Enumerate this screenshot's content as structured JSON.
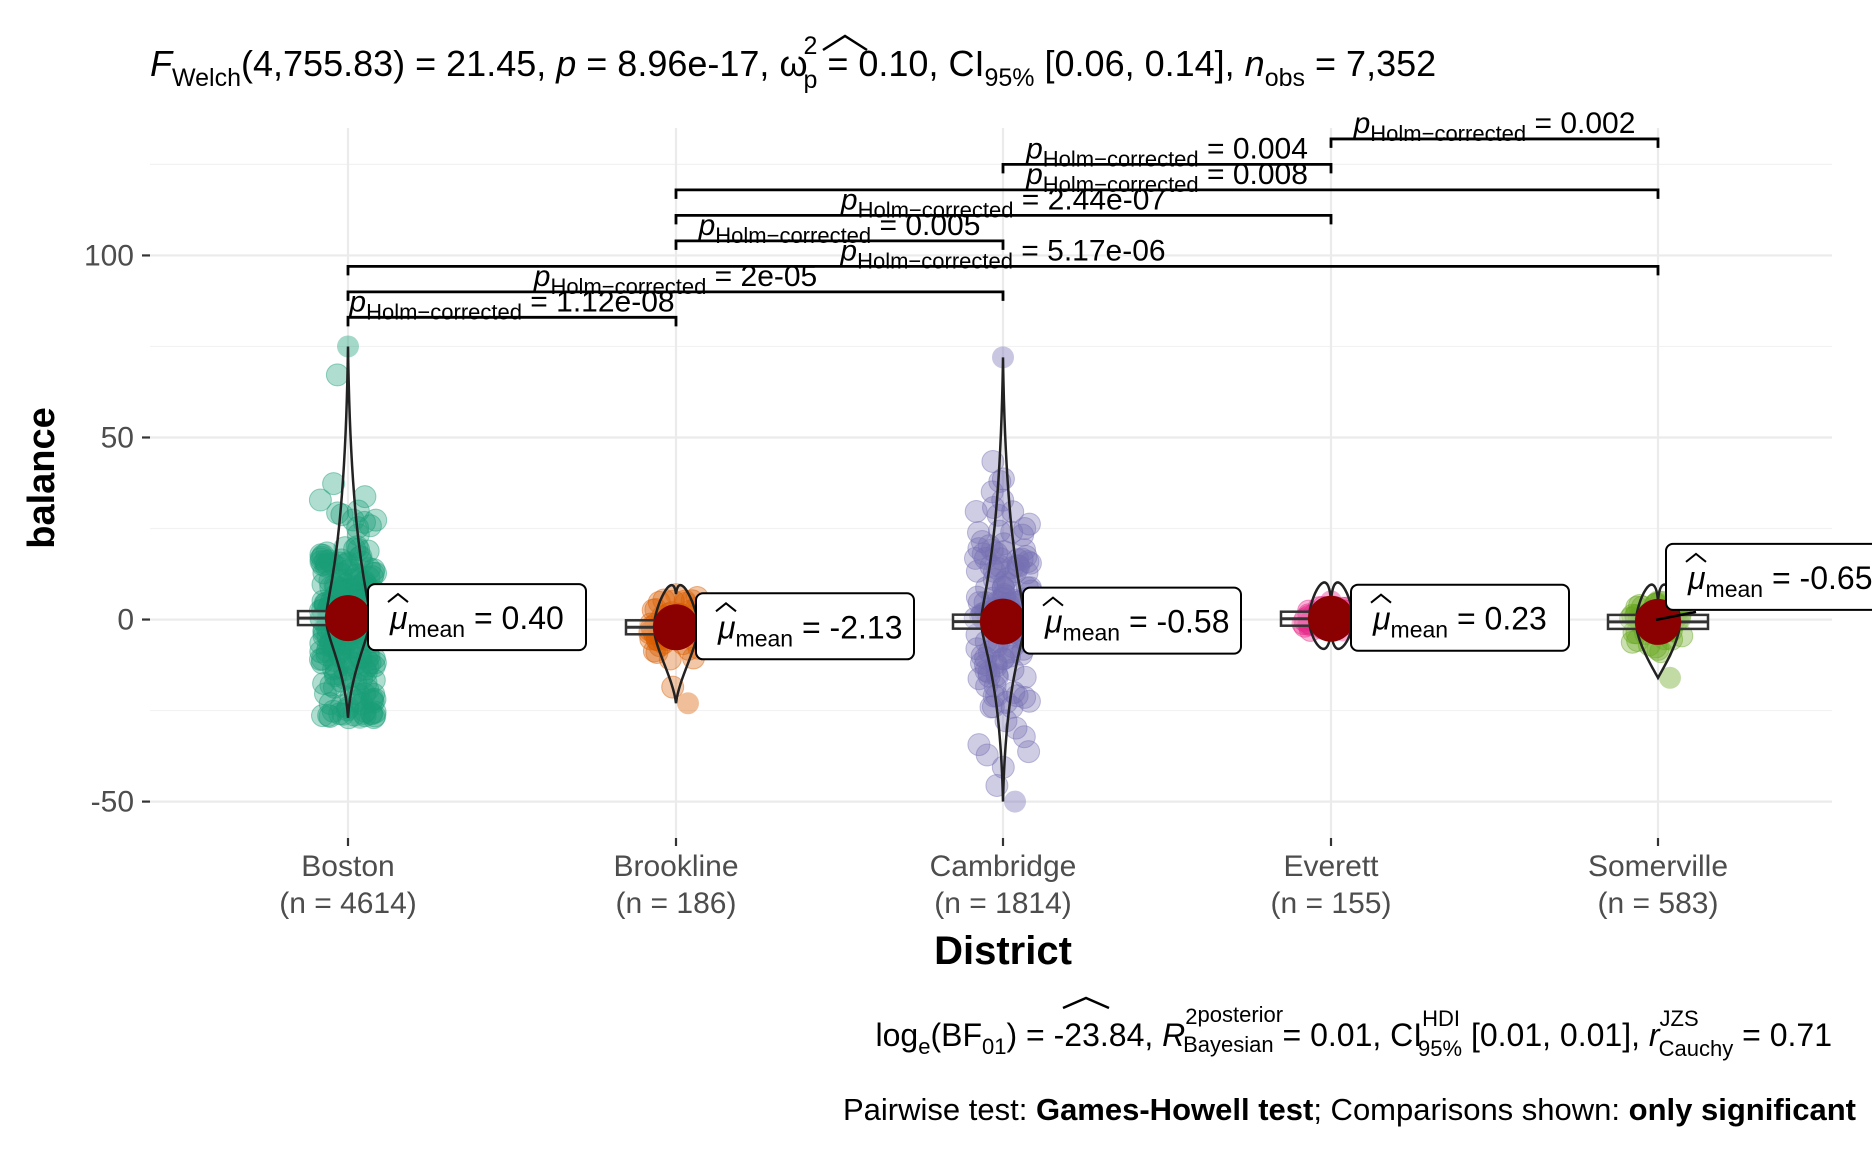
{
  "chart_data": {
    "type": "violin-box-scatter",
    "title": {
      "F": "F",
      "F_sub": "Welch",
      "F_args": "(4,755.83) = 21.45, ",
      "p": "p",
      "p_val": " = 8.96e-17, ",
      "omega": "ω",
      "omega_sup": "2",
      "omega_sub": "p",
      "omega_val": " = 0.10, CI",
      "ci_sub": "95%",
      "ci_val": " [0.06, 0.14], ",
      "n": "n",
      "n_sub": "obs",
      "n_val": " = 7,352"
    },
    "xlabel": "District",
    "ylabel": "balance",
    "ylim": [
      -60,
      135
    ],
    "y_ticks": [
      -50,
      0,
      50,
      100
    ],
    "groups": [
      {
        "name": "Boston",
        "n_label": "(n = 4614)",
        "mean": 0.4,
        "mean_label": "= 0.40",
        "color": "#1b9e77",
        "min": -27,
        "max": 75,
        "spread": 18
      },
      {
        "name": "Brookline",
        "n_label": "(n = 186)",
        "mean": -2.13,
        "mean_label": "= -2.13",
        "color": "#d95f02",
        "min": -23,
        "max": 7,
        "spread": 6
      },
      {
        "name": "Cambridge",
        "n_label": "(n = 1814)",
        "mean": -0.58,
        "mean_label": "= -0.58",
        "color": "#7570b3",
        "min": -50,
        "max": 72,
        "spread": 22
      },
      {
        "name": "Everett",
        "n_label": "(n = 155)",
        "mean": 0.23,
        "mean_label": "= 0.23",
        "color": "#e7298a",
        "min": -3,
        "max": 5,
        "spread": 2
      },
      {
        "name": "Somerville",
        "n_label": "(n = 583)",
        "mean": -0.65,
        "mean_label": "= -0.65",
        "color": "#66a61e",
        "min": -16,
        "max": 5,
        "spread": 5
      }
    ],
    "mu": "μ",
    "mean_sub": "mean",
    "p_symbol": "p",
    "p_sub": "Holm−corrected",
    "comparisons": [
      {
        "from": 0,
        "to": 1,
        "y": 83,
        "label": "= 1.12e-08"
      },
      {
        "from": 0,
        "to": 2,
        "y": 90,
        "label": "= 2e-05"
      },
      {
        "from": 0,
        "to": 4,
        "y": 97,
        "label": "= 5.17e-06"
      },
      {
        "from": 1,
        "to": 2,
        "y": 104,
        "label": "= 0.005"
      },
      {
        "from": 1,
        "to": 3,
        "y": 111,
        "label": "= 2.44e-07"
      },
      {
        "from": 1,
        "to": 4,
        "y": 118,
        "label": "= 0.008"
      },
      {
        "from": 2,
        "to": 3,
        "y": 125,
        "label": "= 0.004"
      },
      {
        "from": 3,
        "to": 4,
        "y": 132,
        "label": "= 0.002"
      }
    ],
    "caption_bf": {
      "log": "log",
      "log_sub": "e",
      "bf": "(BF",
      "bf_sub": "01",
      "bf_val": ") = -23.84, ",
      "R": "R",
      "R_sup": "2",
      "R_sup2": "posterior",
      "R_sub": "Bayesian",
      "R_val": " = 0.01, CI",
      "ci_sup": "HDI",
      "ci_sub": "95%",
      "ci_val": " [0.01, 0.01], ",
      "r": "r",
      "r_sup": "JZS",
      "r_sub": "Cauchy",
      "r_val": " = 0.71"
    },
    "caption_pairwise": {
      "a": "Pairwise test: ",
      "b": "Games-Howell test",
      "c": "; Comparisons shown: ",
      "d": "only significant"
    }
  }
}
